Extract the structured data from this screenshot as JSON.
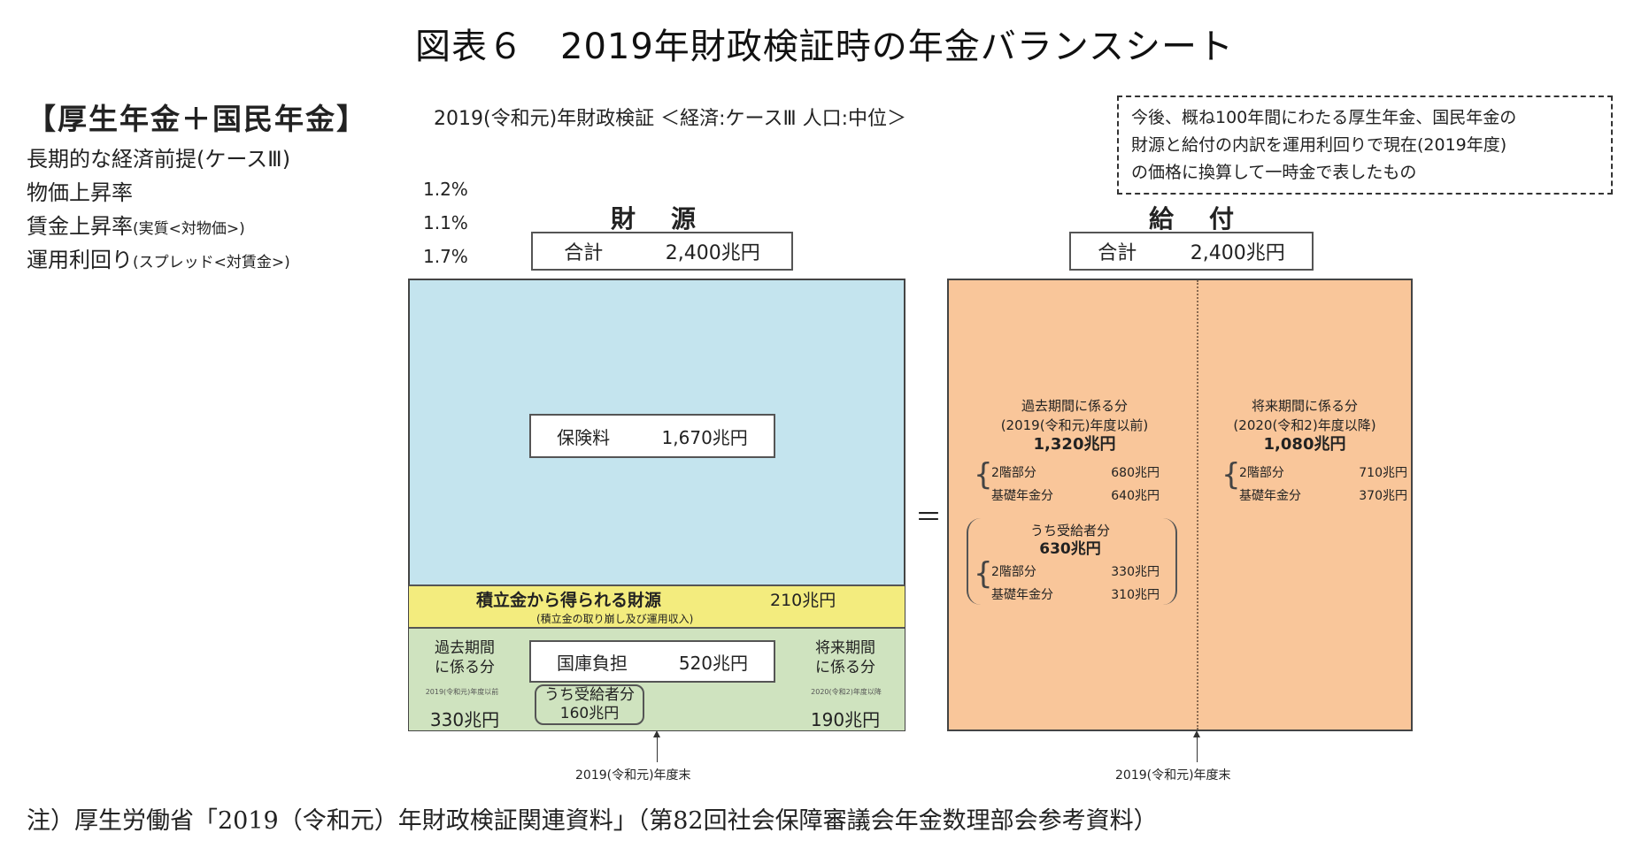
{
  "figure": {
    "title": "図表６　2019年財政検証時の年金バランスシート",
    "header": "【厚生年金＋国民年金】",
    "subheader": "2019(令和元)年財政検証 ＜経済:ケースⅢ 人口:中位＞",
    "note_box": [
      "今後、概ね100年間にわたる厚生年金、国民年金の",
      "財源と給付の内訳を運用利回りで現在(2019年度)",
      "の価格に換算して一時金で表したもの"
    ]
  },
  "assumptions": {
    "heading": "長期的な経済前提(ケースⅢ)",
    "items": [
      {
        "label": "物価上昇率",
        "note": "",
        "value": "1.2%"
      },
      {
        "label": "賃金上昇率",
        "note": "(実質<対物価>)",
        "value": "1.1%"
      },
      {
        "label": "運用利回り",
        "note": "(スプレッド<対賃金>)",
        "value": "1.7%"
      }
    ]
  },
  "sources": {
    "heading": "財　源",
    "total_label": "合計",
    "total_value": "2,400兆円",
    "premium_label": "保険料",
    "premium_value": "1,670兆円",
    "reserve_label": "積立金から得られる財源",
    "reserve_value": "210兆円",
    "reserve_note": "(積立金の取り崩し及び運用収入)",
    "subsidy_label": "国庫負担",
    "subsidy_value": "520兆円",
    "past_label_1": "過去期間",
    "past_label_2": "に係る分",
    "past_note": "2019(令和元)年度以前",
    "past_value": "330兆円",
    "recipients_label": "うち受給者分",
    "recipients_value": "160兆円",
    "future_label_1": "将来期間",
    "future_label_2": "に係る分",
    "future_note": "2020(令和2)年度以降",
    "future_value": "190兆円",
    "timeline_label": "2019(令和元)年度末"
  },
  "equals": "＝",
  "benefits": {
    "heading": "給　付",
    "total_label": "合計",
    "total_value": "2,400兆円",
    "past": {
      "title": "過去期間に係る分",
      "period": "(2019(令和元)年度以前)",
      "value": "1,320兆円",
      "tier2_label": "2階部分",
      "tier2_value": "680兆円",
      "basic_label": "基礎年金分",
      "basic_value": "640兆円",
      "recipients_title": "うち受給者分",
      "recipients_value": "630兆円",
      "r_tier2_label": "2階部分",
      "r_tier2_value": "330兆円",
      "r_basic_label": "基礎年金分",
      "r_basic_value": "310兆円"
    },
    "future": {
      "title": "将来期間に係る分",
      "period": "(2020(令和2)年度以降)",
      "value": "1,080兆円",
      "tier2_label": "2階部分",
      "tier2_value": "710兆円",
      "basic_label": "基礎年金分",
      "basic_value": "370兆円"
    },
    "timeline_label": "2019(令和元)年度末"
  },
  "footnote": "注）厚生労働省「2019（令和元）年財政検証関連資料」（第82回社会保障審議会年金数理部会参考資料）",
  "colors": {
    "premium": "#c4e4ee",
    "reserve": "#f3ec7e",
    "subsidy": "#cfe3bf",
    "benefit": "#f9c69a"
  }
}
